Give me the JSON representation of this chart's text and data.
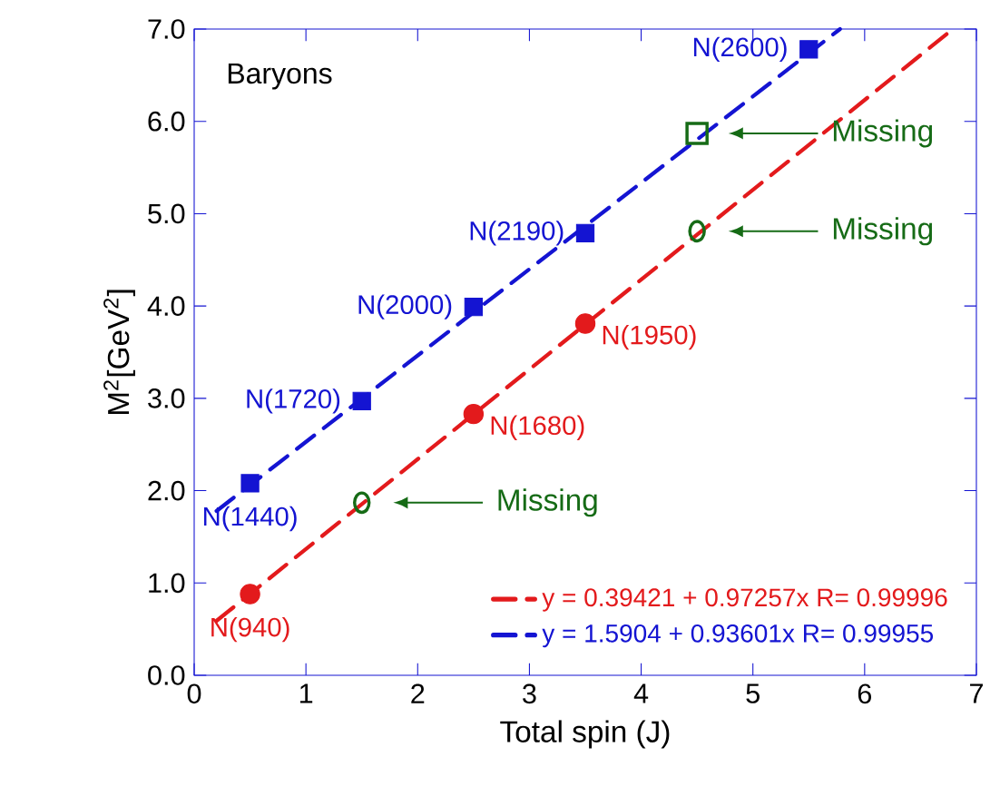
{
  "chart_data": {
    "type": "scatter",
    "title": "Baryons",
    "xlabel": "Total spin (J)",
    "ylabel": "M$^{2}$[GeV$^{2}$]",
    "xlim": [
      0,
      7
    ],
    "ylim": [
      0,
      7
    ],
    "xticks": [
      0,
      1,
      2,
      3,
      4,
      5,
      6,
      7
    ],
    "yticks": [
      {
        "value": 0,
        "label": "0.0"
      },
      {
        "value": 1,
        "label": "1.0"
      },
      {
        "value": 2,
        "label": "2.0"
      },
      {
        "value": 3,
        "label": "3.0"
      },
      {
        "value": 4,
        "label": "4.0"
      },
      {
        "value": 5,
        "label": "5.0"
      },
      {
        "value": 6,
        "label": "6.0"
      },
      {
        "value": 7,
        "label": "7.0"
      }
    ],
    "grid": false,
    "legend": "bottom right",
    "series": [
      {
        "type": "line",
        "name": "y = 0.39421 + 0.97257x   R= 0.99996",
        "color": "#e31a1c",
        "line_style": "dashed",
        "marker": "none",
        "x": [
          0.2,
          6.79
        ],
        "values": [
          0.59,
          7.0
        ]
      },
      {
        "type": "line",
        "name": "y = 1.5904 + 0.93601x   R= 0.99955",
        "color": "#1414d2",
        "line_style": "dashed",
        "marker": "none",
        "x": [
          0.2,
          5.78
        ],
        "values": [
          1.78,
          7.0
        ]
      },
      {
        "color": "#e31a1c",
        "marker": "circle",
        "x": [
          0.5,
          2.5,
          3.5
        ],
        "values": [
          0.88,
          2.83,
          3.81
        ]
      },
      {
        "color": "#1414d2",
        "marker": "square",
        "x": [
          0.5,
          1.5,
          2.5,
          3.5,
          5.5
        ],
        "values": [
          2.08,
          2.97,
          3.99,
          4.79,
          6.78
        ]
      },
      {
        "color": "#166b16",
        "marker": "circle",
        "x": [
          1.5,
          4.5
        ],
        "values": [
          1.87,
          4.81
        ]
      },
      {
        "color": "#166b16",
        "marker": "square",
        "x": [
          4.5
        ],
        "values": [
          5.87
        ]
      }
    ],
    "annotations": [
      {
        "text": "N(940)",
        "x": 0.5,
        "y": 0.88
      },
      {
        "text": "N(1680)",
        "x": 2.5,
        "y": 2.83
      },
      {
        "text": "N(1950)",
        "x": 3.5,
        "y": 3.81
      },
      {
        "text": "N(1440)",
        "x": 0.5,
        "y": 2.08
      },
      {
        "text": "N(1720)",
        "x": 1.5,
        "y": 2.97
      },
      {
        "text": "N(2000)",
        "x": 2.5,
        "y": 3.99
      },
      {
        "text": "N(2190)",
        "x": 3.5,
        "y": 4.79
      },
      {
        "text": "N(2600)",
        "x": 5.5,
        "y": 6.78
      },
      "Missing",
      "Missing",
      "Missing"
    ]
  }
}
